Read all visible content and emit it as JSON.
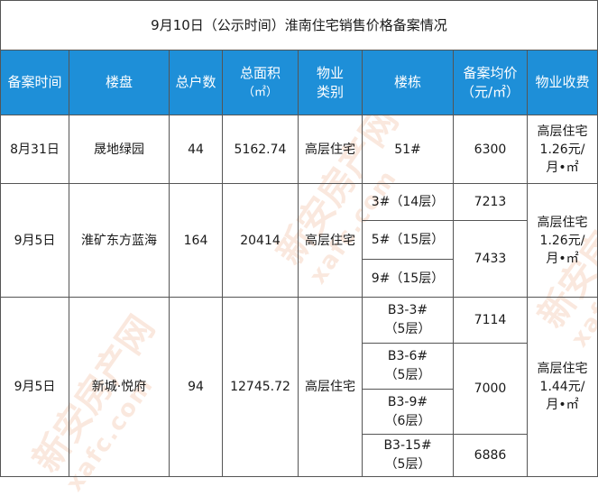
{
  "title": "9月10日（公示时间）淮南住宅销售价格备案情况",
  "headers": {
    "date": "备案时间",
    "project": "楼盘",
    "households": "总户数",
    "area_1": "总面积",
    "area_2": "（㎡）",
    "type_1": "物业",
    "type_2": "类别",
    "building": "楼栋",
    "price_1": "备案均价",
    "price_2": "（元/㎡）",
    "fee": "物业收费"
  },
  "rows": [
    {
      "date": "8月31日",
      "project": "晟地绿园",
      "households": "44",
      "area": "5162.74",
      "type": "高层住宅",
      "buildings": [
        {
          "line1": "51#",
          "line2": ""
        }
      ],
      "prices": [
        "6300"
      ],
      "fee": {
        "line1": "高层住宅",
        "line2": "1.26元/",
        "line3": "月•㎡"
      }
    },
    {
      "date": "9月5日",
      "project": "淮矿东方蓝海",
      "households": "164",
      "area": "20414",
      "type": "高层住宅",
      "buildings": [
        {
          "line1": "3#（14层）",
          "line2": ""
        },
        {
          "line1": "5#（15层）",
          "line2": ""
        },
        {
          "line1": "9#（15层）",
          "line2": ""
        }
      ],
      "prices": [
        "7213",
        "7433"
      ],
      "fee": {
        "line1": "高层住宅",
        "line2": "1.26元/",
        "line3": "月•㎡"
      }
    },
    {
      "date": "9月5日",
      "project": "新城·悦府",
      "households": "94",
      "area": "12745.72",
      "type": "高层住宅",
      "buildings": [
        {
          "line1": "B3-3#",
          "line2": "（5层）"
        },
        {
          "line1": "B3-6#",
          "line2": "（5层）"
        },
        {
          "line1": "B3-9#",
          "line2": "（6层）"
        },
        {
          "line1": "B3-15#",
          "line2": "（5层）"
        }
      ],
      "prices": [
        "7114",
        "7000",
        "6886"
      ],
      "fee": {
        "line1": "高层住宅",
        "line2": "1.44元/",
        "line3": "月•㎡"
      }
    }
  ],
  "watermark": {
    "cn": "新安房产网",
    "en": "xafc.com"
  },
  "colors": {
    "header_bg": "#1e8fd8",
    "header_text": "#ffffff",
    "border": "#555555",
    "watermark": "#e68c5a"
  }
}
